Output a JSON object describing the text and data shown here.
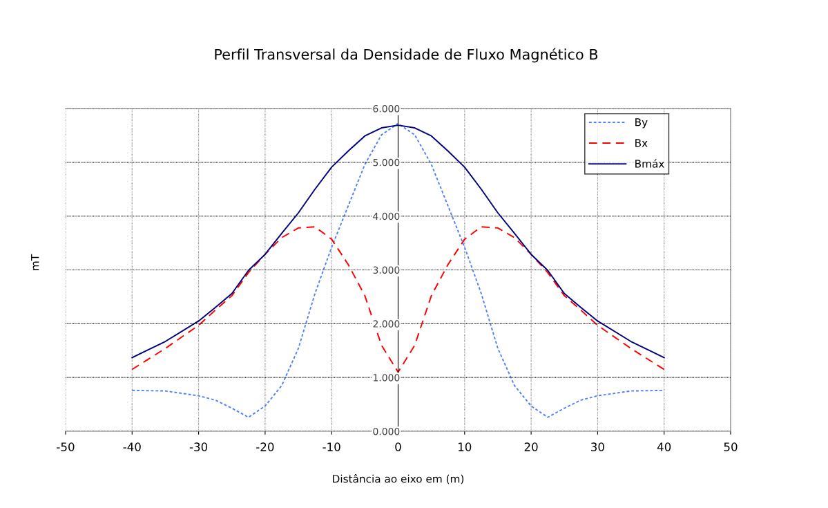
{
  "chart_data": {
    "type": "line",
    "title": "Perfil Transversal da Densidade de Fluxo Magnético B",
    "xlabel": "Distância ao eixo em (m)",
    "ylabel": "mT",
    "x": [
      -40,
      -35,
      -30,
      -27.5,
      -25,
      -22.5,
      -20,
      -17.5,
      -15,
      -12.5,
      -10,
      -7.5,
      -5,
      -2.5,
      0,
      2.5,
      5,
      7.5,
      10,
      12.5,
      15,
      17.5,
      20,
      22.5,
      25,
      27.5,
      30,
      35,
      40
    ],
    "series": [
      {
        "name": "By",
        "color": "#4f81ff",
        "line_style": "dotted",
        "values": [
          0.76,
          0.75,
          0.66,
          0.58,
          0.43,
          0.26,
          0.47,
          0.85,
          1.54,
          2.56,
          3.42,
          4.19,
          4.96,
          5.51,
          5.72,
          5.51,
          4.96,
          4.19,
          3.42,
          2.56,
          1.54,
          0.85,
          0.47,
          0.26,
          0.43,
          0.58,
          0.66,
          0.75,
          0.76
        ]
      },
      {
        "name": "Bx",
        "color": "#ff0000",
        "line_style": "dashed",
        "values": [
          1.15,
          1.54,
          1.97,
          2.25,
          2.52,
          2.95,
          3.29,
          3.6,
          3.78,
          3.8,
          3.57,
          3.1,
          2.52,
          1.6,
          1.1,
          1.6,
          2.52,
          3.1,
          3.57,
          3.8,
          3.78,
          3.6,
          3.29,
          2.95,
          2.52,
          2.25,
          1.97,
          1.54,
          1.15
        ]
      },
      {
        "name": "Bmáx",
        "color": "#000080",
        "line_style": "solid",
        "values": [
          1.37,
          1.67,
          2.05,
          2.3,
          2.56,
          2.99,
          3.29,
          3.68,
          4.06,
          4.5,
          4.91,
          5.21,
          5.49,
          5.64,
          5.69,
          5.64,
          5.49,
          5.21,
          4.91,
          4.5,
          4.06,
          3.68,
          3.29,
          2.99,
          2.56,
          2.3,
          2.05,
          1.67,
          1.37
        ]
      }
    ],
    "xlim": [
      -50,
      50
    ],
    "xticks": [
      -50,
      -40,
      -30,
      -20,
      -10,
      0,
      10,
      20,
      30,
      40,
      50
    ],
    "ylim": [
      0,
      6
    ],
    "yticks": [
      {
        "value": 0,
        "label": "0.000"
      },
      {
        "value": 1,
        "label": "1.000"
      },
      {
        "value": 2,
        "label": "2.000"
      },
      {
        "value": 3,
        "label": "3.000"
      },
      {
        "value": 4,
        "label": "4.000"
      },
      {
        "value": 5,
        "label": "5.000"
      },
      {
        "value": 6,
        "label": "6.000"
      }
    ],
    "grid": true,
    "legend": "top right",
    "marker": "none"
  }
}
